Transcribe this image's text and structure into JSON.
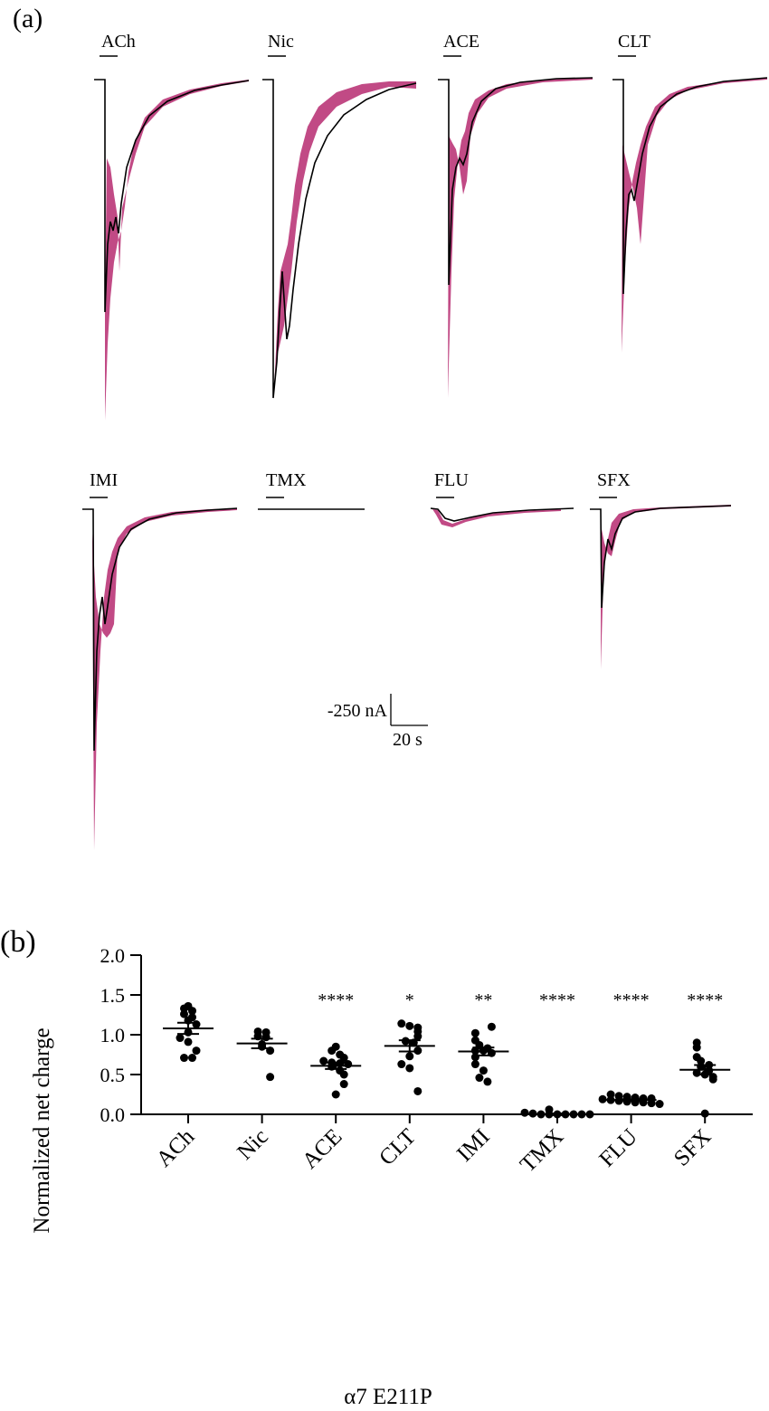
{
  "colors": {
    "band": "#c14a85",
    "trace": "#000000",
    "dots": "#000000",
    "axis": "#000000"
  },
  "panel_a": {
    "label": "(a)",
    "traces": [
      {
        "name": "ACh"
      },
      {
        "name": "Nic"
      },
      {
        "name": "ACE"
      },
      {
        "name": "CLT"
      },
      {
        "name": "IMI"
      },
      {
        "name": "TMX"
      },
      {
        "name": "FLU"
      },
      {
        "name": "SFX"
      }
    ],
    "scale_bar": {
      "current": "-250 nA",
      "time": "20 s"
    }
  },
  "panel_b": {
    "label": "(b)",
    "ylabel": "Normalized net charge",
    "xlabel": "α7 E211P",
    "ytick_labels": [
      "0.0",
      "0.5",
      "1.0",
      "1.5",
      "2.0"
    ]
  },
  "chart_data": {
    "type": "scatter",
    "title": "",
    "xlabel": "α7 E211P",
    "ylabel": "Normalized net charge",
    "ylim": [
      0,
      2.0
    ],
    "yticks": [
      0,
      0.5,
      1.0,
      1.5,
      2.0
    ],
    "categories": [
      "ACh",
      "Nic",
      "ACE",
      "CLT",
      "IMI",
      "TMX",
      "FLU",
      "SFX"
    ],
    "significance": [
      "",
      "",
      "****",
      "*",
      "**",
      "****",
      "****",
      "****"
    ],
    "means": [
      1.08,
      0.89,
      0.61,
      0.86,
      0.79,
      0.0,
      0.18,
      0.56
    ],
    "sem": [
      0.07,
      0.06,
      0.04,
      0.07,
      0.05,
      0.01,
      0.01,
      0.06
    ],
    "points": [
      [
        1.36,
        1.33,
        1.3,
        1.26,
        1.22,
        1.18,
        1.13,
        1.03,
        0.96,
        0.91,
        0.8,
        0.71,
        0.71
      ],
      [
        1.04,
        1.03,
        0.98,
        0.97,
        0.88,
        0.85,
        0.8,
        0.47
      ],
      [
        0.85,
        0.8,
        0.75,
        0.71,
        0.67,
        0.65,
        0.64,
        0.63,
        0.6,
        0.55,
        0.5,
        0.38,
        0.25
      ],
      [
        1.14,
        1.11,
        1.09,
        1.04,
        0.98,
        0.92,
        0.9,
        0.8,
        0.73,
        0.63,
        0.58,
        0.29
      ],
      [
        1.1,
        1.02,
        0.93,
        0.87,
        0.83,
        0.8,
        0.8,
        0.77,
        0.72,
        0.63,
        0.55,
        0.46,
        0.41
      ],
      [
        0.06,
        0.02,
        0.01,
        0.0,
        0.0,
        0.0,
        0.0,
        0.0,
        0.0,
        0.0
      ],
      [
        0.25,
        0.23,
        0.22,
        0.21,
        0.2,
        0.2,
        0.19,
        0.18,
        0.17,
        0.16,
        0.15,
        0.15,
        0.14,
        0.13
      ],
      [
        0.9,
        0.84,
        0.72,
        0.67,
        0.62,
        0.6,
        0.55,
        0.52,
        0.5,
        0.47,
        0.44,
        0.01
      ]
    ]
  }
}
